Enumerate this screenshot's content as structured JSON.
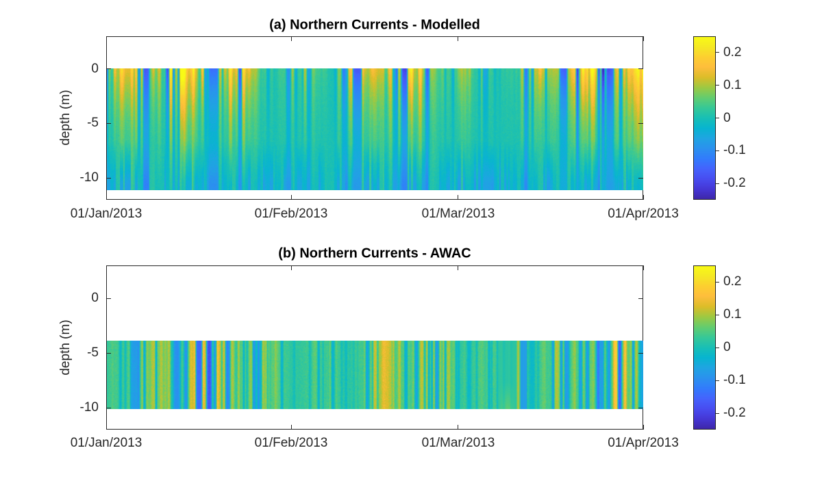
{
  "figure": {
    "background": "#ffffff",
    "axes_color": "#262626",
    "tick_label_color": "#262626",
    "title_color": "#000000",
    "colormap": "parula"
  },
  "panels": [
    {
      "id": "a",
      "title": "(a) Northern Currents - Modelled",
      "ylabel": "depth (m)",
      "x_ticks": [
        {
          "label": "01/Jan/2013",
          "day": 0
        },
        {
          "label": "01/Feb/2013",
          "day": 31
        },
        {
          "label": "01/Mar/2013",
          "day": 59
        },
        {
          "label": "01/Apr/2013",
          "day": 90
        }
      ],
      "y_ticks": [
        {
          "label": "0",
          "value": 0
        },
        {
          "label": "-5",
          "value": -5
        },
        {
          "label": "-10",
          "value": -10
        }
      ],
      "colorbar_ticks": [
        {
          "label": "0.2",
          "value": 0.2
        },
        {
          "label": "0.1",
          "value": 0.1
        },
        {
          "label": "0",
          "value": 0
        },
        {
          "label": "-0.1",
          "value": -0.1
        },
        {
          "label": "-0.2",
          "value": -0.2
        }
      ]
    },
    {
      "id": "b",
      "title": "(b) Northern Currents - AWAC",
      "ylabel": "depth (m)",
      "x_ticks": [
        {
          "label": "01/Jan/2013",
          "day": 0
        },
        {
          "label": "01/Feb/2013",
          "day": 31
        },
        {
          "label": "01/Mar/2013",
          "day": 59
        },
        {
          "label": "01/Apr/2013",
          "day": 90
        }
      ],
      "y_ticks": [
        {
          "label": "0",
          "value": 0
        },
        {
          "label": "-5",
          "value": -5
        },
        {
          "label": "-10",
          "value": -10
        }
      ],
      "colorbar_ticks": [
        {
          "label": "0.2",
          "value": 0.2
        },
        {
          "label": "0.1",
          "value": 0.1
        },
        {
          "label": "0",
          "value": 0
        },
        {
          "label": "-0.1",
          "value": -0.1
        },
        {
          "label": "-0.2",
          "value": -0.2
        }
      ]
    }
  ],
  "chart_data": [
    {
      "type": "heatmap",
      "title": "(a) Northern Currents - Modelled",
      "xlabel": "",
      "ylabel": "depth (m)",
      "x_range": [
        "01/Jan/2013",
        "01/Apr/2013"
      ],
      "x_tick_labels": [
        "01/Jan/2013",
        "01/Feb/2013",
        "01/Mar/2013",
        "01/Apr/2013"
      ],
      "x_tick_days_from_start": [
        0,
        31,
        59,
        90
      ],
      "ylim": [
        -12,
        3
      ],
      "y_ticks": [
        0,
        -5,
        -10
      ],
      "data_depth_extent_m": [
        0,
        -11.1
      ],
      "clim": [
        -0.25,
        0.25
      ],
      "colorbar_tick_values": [
        0.2,
        0.1,
        0,
        -0.1,
        -0.2
      ],
      "colormap": "parula",
      "grid": false,
      "legend_position": "none",
      "value_description": "Modelled northward current velocity (m/s): dense vertical time stripes, surface-intensified values from about -0.25 to +0.25 at 0 m depth decaying toward 0 with depth; bottom layer (below ~-9 m) mostly weak (0 to -0.1, cyan/blue); intermittent full-depth negative (blue) events"
    },
    {
      "type": "heatmap",
      "title": "(b) Northern Currents - AWAC",
      "xlabel": "",
      "ylabel": "depth (m)",
      "x_range": [
        "01/Jan/2013",
        "01/Apr/2013"
      ],
      "x_tick_labels": [
        "01/Jan/2013",
        "01/Feb/2013",
        "01/Mar/2013",
        "01/Apr/2013"
      ],
      "x_tick_days_from_start": [
        0,
        31,
        59,
        90
      ],
      "ylim": [
        -12,
        3
      ],
      "y_ticks": [
        0,
        -5,
        -10
      ],
      "data_depth_extent_m": [
        -3.9,
        -10.1
      ],
      "clim": [
        -0.25,
        0.25
      ],
      "colorbar_tick_values": [
        0.2,
        0.1,
        0,
        -0.1,
        -0.2
      ],
      "colormap": "parula",
      "grid": false,
      "legend_position": "none",
      "value_description": "AWAC-measured northward current velocity (m/s): narrow vertical time stripes roughly uniform over the -4 to -10 m instrument range, values mostly between -0.15 and +0.15 (teal/green/yellow with blue bands); a smooth calm teal patch appears in mid-March"
    }
  ]
}
